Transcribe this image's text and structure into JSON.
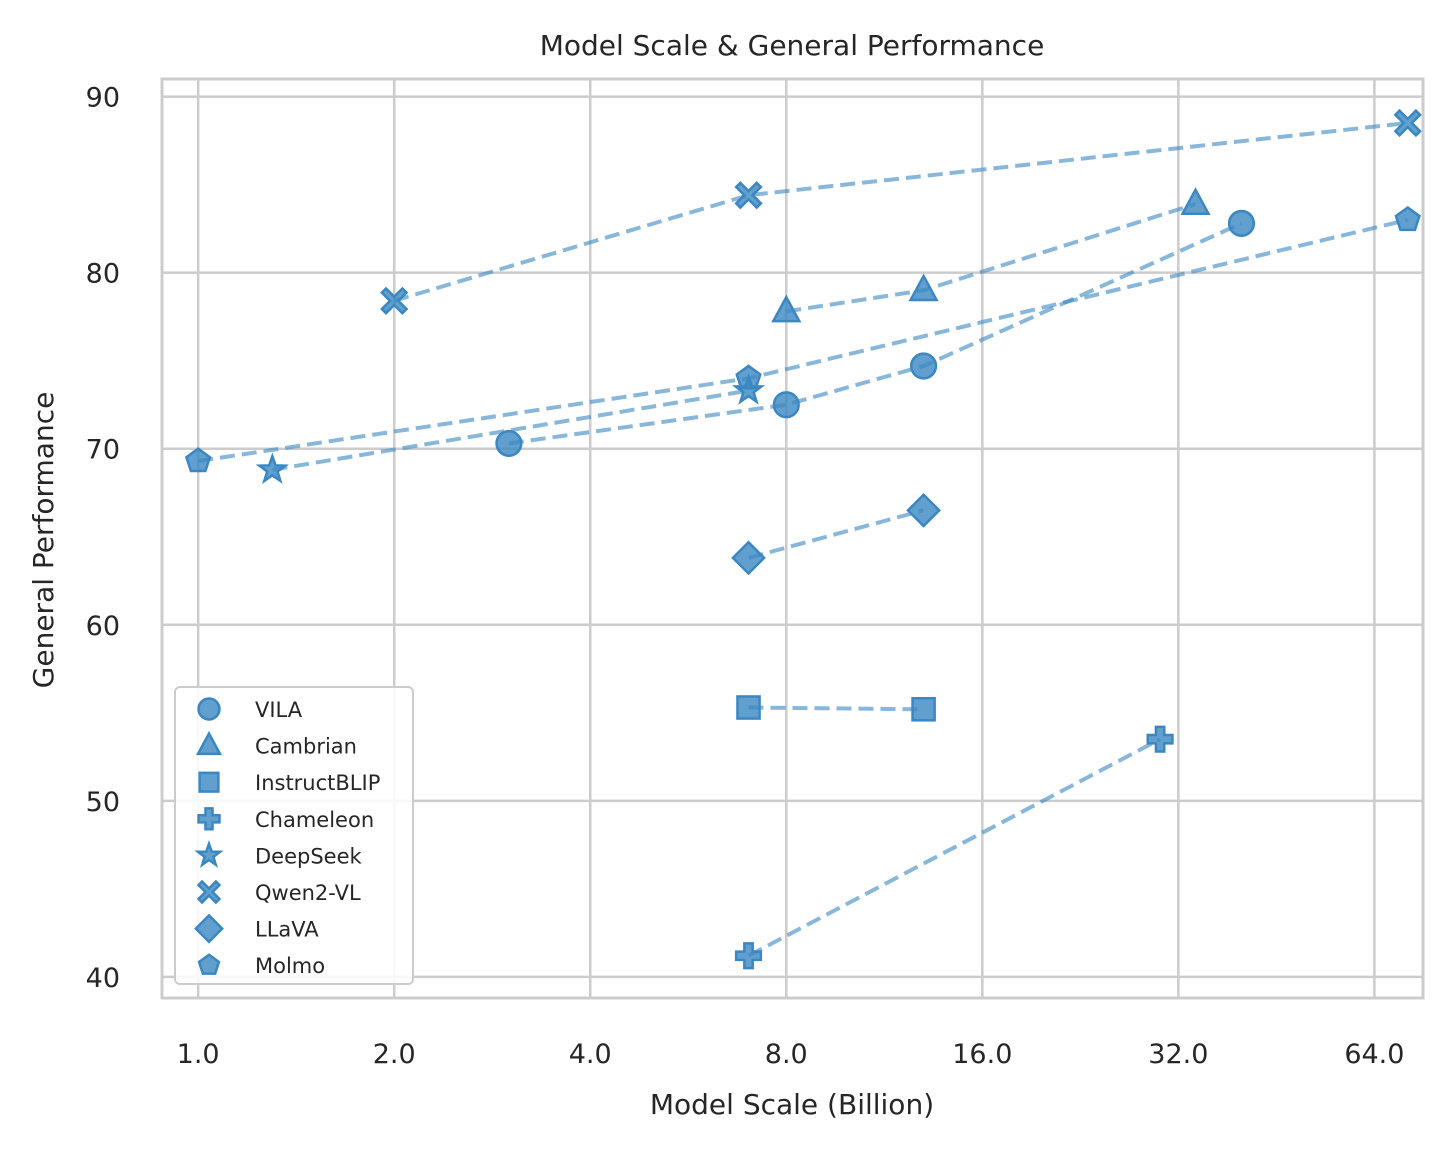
{
  "chart_data": {
    "type": "scatter",
    "title": "Model Scale & General Performance",
    "xlabel": "Model Scale (Billion)",
    "ylabel": "General Performance",
    "xscale": "log2",
    "xlim": [
      0.88,
      76
    ],
    "ylim": [
      38.8,
      91
    ],
    "xticks": [
      1,
      2,
      4,
      8,
      16,
      32,
      64
    ],
    "xtick_labels": [
      "1.0",
      "2.0",
      "4.0",
      "8.0",
      "16.0",
      "32.0",
      "64.0"
    ],
    "yticks": [
      40,
      50,
      60,
      70,
      80,
      90
    ],
    "ytick_labels": [
      "40",
      "50",
      "60",
      "70",
      "80",
      "90"
    ],
    "grid": true,
    "legend_position": "lower-left",
    "color": "#3a87c2",
    "series": [
      {
        "name": "VILA",
        "marker": "circle",
        "x": [
          3,
          8,
          13,
          40
        ],
        "y": [
          70.3,
          72.5,
          74.7,
          82.8
        ]
      },
      {
        "name": "Cambrian",
        "marker": "triangle",
        "x": [
          8,
          13,
          34
        ],
        "y": [
          77.8,
          79.0,
          83.9
        ]
      },
      {
        "name": "InstructBLIP",
        "marker": "square",
        "x": [
          7,
          13
        ],
        "y": [
          55.3,
          55.2
        ]
      },
      {
        "name": "Chameleon",
        "marker": "plus",
        "x": [
          7,
          30
        ],
        "y": [
          41.2,
          53.5
        ]
      },
      {
        "name": "DeepSeek",
        "marker": "star",
        "x": [
          1.3,
          7
        ],
        "y": [
          68.8,
          73.3
        ]
      },
      {
        "name": "Qwen2-VL",
        "marker": "x",
        "x": [
          2,
          7,
          72
        ],
        "y": [
          78.4,
          84.4,
          88.5
        ]
      },
      {
        "name": "LLaVA",
        "marker": "diamond",
        "x": [
          7,
          13
        ],
        "y": [
          63.8,
          66.5
        ]
      },
      {
        "name": "Molmo",
        "marker": "pentagon",
        "x": [
          1,
          7,
          72
        ],
        "y": [
          69.3,
          74.0,
          83.0
        ]
      }
    ]
  }
}
